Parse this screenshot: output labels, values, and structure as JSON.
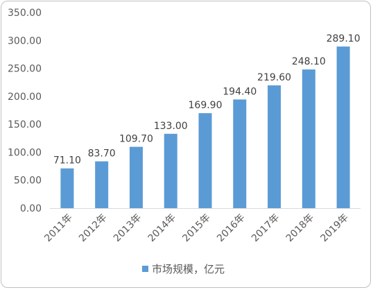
{
  "chart_data": {
    "type": "bar",
    "categories": [
      "2011年",
      "2012年",
      "2013年",
      "2014年",
      "2015年",
      "2016年",
      "2017年",
      "2018年",
      "2019年"
    ],
    "series": [
      {
        "name": "市场规模，亿元",
        "values": [
          71.1,
          83.7,
          109.7,
          133.0,
          169.9,
          194.4,
          219.6,
          248.1,
          289.1
        ],
        "labels": [
          "71.10",
          "83.70",
          "109.70",
          "133.00",
          "169.90",
          "194.40",
          "219.60",
          "248.10",
          "289.10"
        ],
        "color": "#5b9bd5"
      }
    ],
    "ylim": [
      0,
      350
    ],
    "yticks": [
      "0.00",
      "50.00",
      "100.00",
      "150.00",
      "200.00",
      "250.00",
      "300.00",
      "350.00"
    ],
    "ytick_values": [
      0,
      50,
      100,
      150,
      200,
      250,
      300,
      350
    ],
    "grid": false,
    "legend": "bottom",
    "axis_color": "#d9d9d9",
    "title": "",
    "xlabel": "",
    "ylabel": ""
  }
}
